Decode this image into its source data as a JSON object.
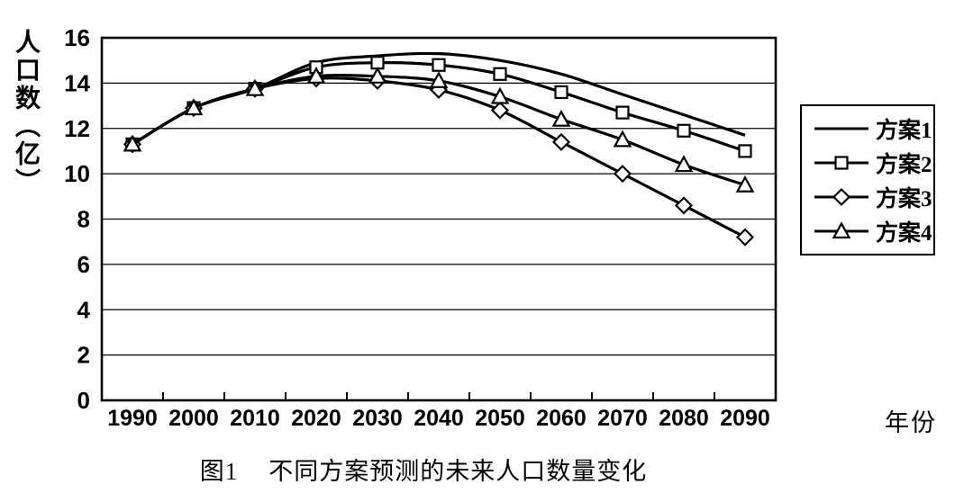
{
  "figure": {
    "y_axis_title": "人口数（亿）",
    "x_axis_title": "年份",
    "caption_prefix": "图1",
    "caption_text": "不同方案预测的未来人口数量变化"
  },
  "colors": {
    "line": "#000000",
    "background": "#ffffff",
    "marker_fill": "#ffffff",
    "grid": "#000000"
  },
  "chart_data": {
    "type": "line",
    "title": "图1 不同方案预测的未来人口数量变化",
    "xlabel": "年份",
    "ylabel": "人口数（亿）",
    "categories": [
      "1990",
      "2000",
      "2010",
      "2020",
      "2030",
      "2040",
      "2050",
      "2060",
      "2070",
      "2080",
      "2090"
    ],
    "y_ticks": [
      0,
      2,
      4,
      6,
      8,
      10,
      12,
      14,
      16
    ],
    "ylim": [
      0,
      16
    ],
    "grid": "horizontal",
    "legend_position": "right",
    "series": [
      {
        "name": "方案1",
        "marker": "none",
        "values": [
          11.3,
          12.9,
          13.75,
          14.9,
          15.2,
          15.3,
          15.0,
          14.4,
          13.5,
          12.6,
          11.7
        ]
      },
      {
        "name": "方案2",
        "marker": "square",
        "values": [
          11.3,
          12.9,
          13.75,
          14.7,
          14.9,
          14.8,
          14.4,
          13.6,
          12.7,
          11.9,
          11.0
        ]
      },
      {
        "name": "方案3",
        "marker": "diamond",
        "values": [
          11.3,
          12.9,
          13.75,
          14.2,
          14.1,
          13.7,
          12.8,
          11.4,
          10.0,
          8.6,
          7.2
        ]
      },
      {
        "name": "方案4",
        "marker": "triangle",
        "values": [
          11.3,
          12.9,
          13.75,
          14.3,
          14.3,
          14.1,
          13.4,
          12.4,
          11.5,
          10.4,
          9.5
        ]
      }
    ]
  }
}
